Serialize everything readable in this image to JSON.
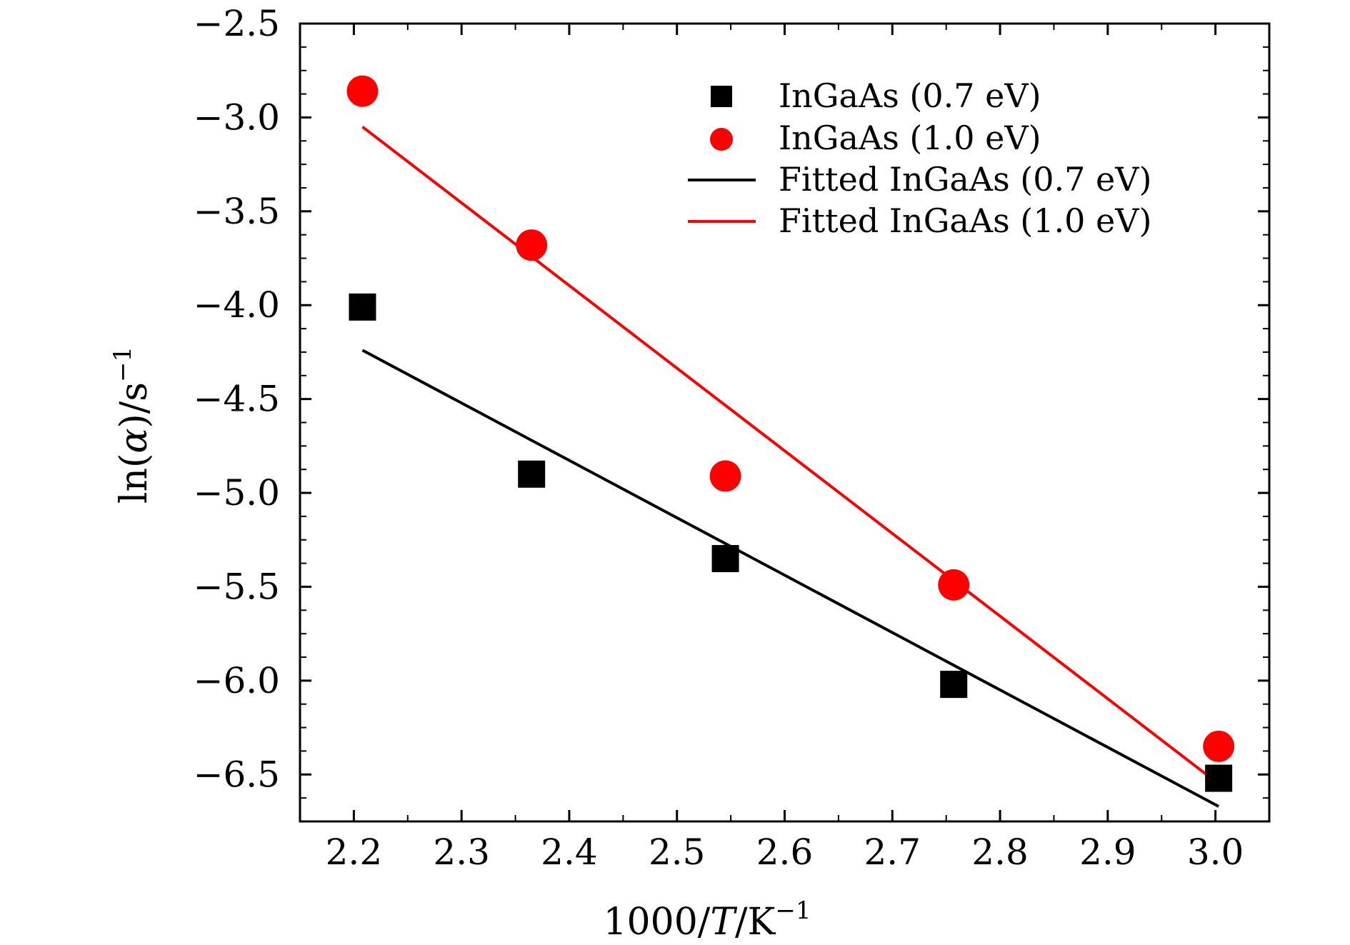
{
  "chart_data": {
    "type": "scatter",
    "title": "",
    "xlabel": {
      "prefix": "1000/",
      "var": "T",
      "unit": "/K",
      "sup": "−1"
    },
    "ylabel": {
      "prefix": "ln(",
      "var": "α",
      "suffix": ")/s",
      "sup": "−1"
    },
    "xlim": [
      2.15,
      3.05
    ],
    "ylim": [
      -6.75,
      -2.5
    ],
    "x_ticks": [
      2.2,
      2.3,
      2.4,
      2.5,
      2.6,
      2.7,
      2.8,
      2.9,
      3.0
    ],
    "x_tick_labels": [
      "2.2",
      "2.3",
      "2.4",
      "2.5",
      "2.6",
      "2.7",
      "2.8",
      "2.9",
      "3.0"
    ],
    "y_ticks": [
      -2.5,
      -3.0,
      -3.5,
      -4.0,
      -4.5,
      -5.0,
      -5.5,
      -6.0,
      -6.5
    ],
    "y_tick_labels": [
      "−2.5",
      "−3.0",
      "−3.5",
      "−4.0",
      "−4.5",
      "−5.0",
      "−5.5",
      "−6.0",
      "−6.5"
    ],
    "grid": false,
    "legend_position": "top-right",
    "series": [
      {
        "name": "InGaAs (0.7 eV)",
        "kind": "scatter",
        "marker": "square",
        "color": "#000000",
        "x": [
          2.208,
          2.365,
          2.545,
          2.757,
          3.003
        ],
        "y": [
          -4.01,
          -4.9,
          -5.35,
          -6.02,
          -6.52
        ]
      },
      {
        "name": "InGaAs (1.0 eV)",
        "kind": "scatter",
        "marker": "circle",
        "color": "#ff0000",
        "x": [
          2.208,
          2.365,
          2.545,
          2.757,
          3.003
        ],
        "y": [
          -2.86,
          -3.68,
          -4.91,
          -5.49,
          -6.35
        ]
      },
      {
        "name": "Fitted InGaAs (0.7 eV)",
        "kind": "line",
        "color": "#000000",
        "x": [
          2.208,
          3.003
        ],
        "y": [
          -4.24,
          -6.67
        ]
      },
      {
        "name": "Fitted InGaAs (1.0 eV)",
        "kind": "line",
        "color": "#ff0000",
        "x": [
          2.208,
          3.003
        ],
        "y": [
          -3.05,
          -6.55
        ]
      }
    ]
  }
}
